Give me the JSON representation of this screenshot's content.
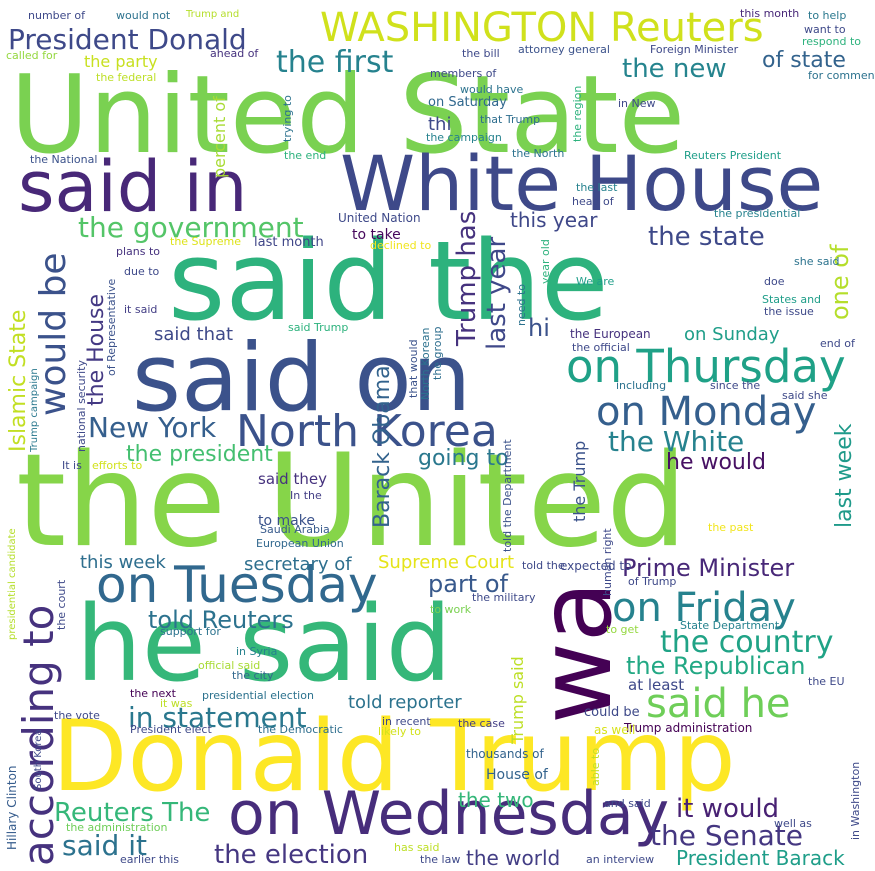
{
  "words": [
    {
      "text": "United State",
      "color": "#7ad151"
    },
    {
      "text": "the United",
      "color": "#86d549"
    },
    {
      "text": "said the",
      "color": "#2db27d"
    },
    {
      "text": "Donald Trump",
      "color": "#fde725"
    },
    {
      "text": "said on",
      "color": "#3b528b"
    },
    {
      "text": "wa",
      "color": "#440154"
    },
    {
      "text": "he said",
      "color": "#35b779"
    },
    {
      "text": "White House",
      "color": "#3e4989"
    },
    {
      "text": "said in",
      "color": "#482878"
    },
    {
      "text": "WASHINGTON Reuters",
      "color": "#d0e11c"
    },
    {
      "text": "on Wednesday",
      "color": "#472d7b"
    },
    {
      "text": "on Thursday",
      "color": "#1fa187"
    },
    {
      "text": "on Tuesday",
      "color": "#31688e"
    },
    {
      "text": "North Korea",
      "color": "#3b528b"
    },
    {
      "text": "on Monday",
      "color": "#355f8d"
    },
    {
      "text": "on Friday",
      "color": "#26828e"
    },
    {
      "text": "according to",
      "color": "#46327e"
    },
    {
      "text": "President Donald",
      "color": "#3e4989"
    },
    {
      "text": "said he",
      "color": "#6ece58"
    },
    {
      "text": "the government",
      "color": "#54c568"
    },
    {
      "text": "would be",
      "color": "#3b528b"
    },
    {
      "text": "in statement",
      "color": "#2a788e"
    },
    {
      "text": "the election",
      "color": "#453781"
    },
    {
      "text": "New York",
      "color": "#355f8d"
    },
    {
      "text": "the first",
      "color": "#26828e"
    },
    {
      "text": "the new",
      "color": "#25848e"
    },
    {
      "text": "the state",
      "color": "#3e4989"
    },
    {
      "text": "the country",
      "color": "#20a386"
    },
    {
      "text": "the White",
      "color": "#26828e"
    },
    {
      "text": "the Republican",
      "color": "#22a884"
    },
    {
      "text": "Prime Minister",
      "color": "#482878"
    },
    {
      "text": "part of",
      "color": "#38598c"
    },
    {
      "text": "told Reuters",
      "color": "#2c728e"
    },
    {
      "text": "it would",
      "color": "#482173"
    },
    {
      "text": "the Senate",
      "color": "#453781"
    },
    {
      "text": "said it",
      "color": "#2c728e"
    },
    {
      "text": "Reuters The",
      "color": "#35b779"
    },
    {
      "text": "the president",
      "color": "#44bf70"
    },
    {
      "text": "last year",
      "color": "#3f4889"
    },
    {
      "text": "Trump has",
      "color": "#46327e"
    },
    {
      "text": "Barack Obama",
      "color": "#33638d"
    },
    {
      "text": "this year",
      "color": "#3f4889"
    },
    {
      "text": "of state",
      "color": "#33638d"
    },
    {
      "text": "going to",
      "color": "#2a788e"
    },
    {
      "text": "he would",
      "color": "#471063"
    },
    {
      "text": "the world",
      "color": "#433e85"
    },
    {
      "text": "President Barack",
      "color": "#1f9e89"
    },
    {
      "text": "the House",
      "color": "#443983"
    },
    {
      "text": "Islamic State",
      "color": "#c2df23"
    },
    {
      "text": "one of",
      "color": "#b5de2b"
    },
    {
      "text": "last week",
      "color": "#1f9a8a"
    },
    {
      "text": "Supreme Court",
      "color": "#e5e419"
    },
    {
      "text": "secretary of",
      "color": "#2e6f8e"
    },
    {
      "text": "this week",
      "color": "#2e6e8e"
    },
    {
      "text": "told reporter",
      "color": "#2c738e"
    },
    {
      "text": "the two",
      "color": "#35b779"
    },
    {
      "text": "the party",
      "color": "#c8e020"
    },
    {
      "text": "Trump said",
      "color": "#bddf26"
    },
    {
      "text": "on Sunday",
      "color": "#1f9e89"
    },
    {
      "text": "on Saturday",
      "color": "#31688e"
    },
    {
      "text": "said that",
      "color": "#3e4989"
    },
    {
      "text": "hi",
      "color": "#3b528b"
    },
    {
      "text": "thi",
      "color": "#3e4989"
    },
    {
      "text": "House of",
      "color": "#33638d"
    },
    {
      "text": "the Trump",
      "color": "#3b528b"
    },
    {
      "text": "said they",
      "color": "#46327e"
    },
    {
      "text": "at least",
      "color": "#3e4989"
    },
    {
      "text": "percent of",
      "color": "#a8db34"
    },
    {
      "text": "last month",
      "color": "#404688"
    },
    {
      "text": "United Nation",
      "color": "#3e4989"
    },
    {
      "text": "to take",
      "color": "#46085c"
    },
    {
      "text": "to make",
      "color": "#3b528b"
    },
    {
      "text": "could be",
      "color": "#3e4989"
    },
    {
      "text": "expected to",
      "color": "#3e4989"
    },
    {
      "text": "the European",
      "color": "#46327e"
    },
    {
      "text": "Trump administration",
      "color": "#440154"
    },
    {
      "text": "thousands of",
      "color": "#33638d"
    },
    {
      "text": "the case",
      "color": "#433e85"
    },
    {
      "text": "as well",
      "color": "#d8e219"
    },
    {
      "text": "in recent",
      "color": "#3e4989"
    },
    {
      "text": "the Democratic",
      "color": "#2e6e8e"
    },
    {
      "text": "Saudi Arabia",
      "color": "#375a8c"
    },
    {
      "text": "European Union",
      "color": "#31688e"
    },
    {
      "text": "In the",
      "color": "#433e85"
    },
    {
      "text": "Hillary Clinton",
      "color": "#365c8d"
    },
    {
      "text": "South Korea",
      "color": "#3e4989"
    },
    {
      "text": "the vote",
      "color": "#3e4989"
    },
    {
      "text": "the next",
      "color": "#440154"
    },
    {
      "text": "President elect",
      "color": "#3e4989"
    },
    {
      "text": "presidential election",
      "color": "#2c728e"
    },
    {
      "text": "it was",
      "color": "#bddf26"
    },
    {
      "text": "the city",
      "color": "#31688e"
    },
    {
      "text": "official said",
      "color": "#a8db34"
    },
    {
      "text": "in Syria",
      "color": "#26828e"
    },
    {
      "text": "support for",
      "color": "#2c738e"
    },
    {
      "text": "the court",
      "color": "#3e4989"
    },
    {
      "text": "presidential candidate",
      "color": "#b5de2b"
    },
    {
      "text": "It is",
      "color": "#3e4989"
    },
    {
      "text": "efforts to",
      "color": "#d2e21b"
    },
    {
      "text": "national security",
      "color": "#3e4989"
    },
    {
      "text": "Trump campaign",
      "color": "#2a788e"
    },
    {
      "text": "of Representative",
      "color": "#3b528b"
    },
    {
      "text": "said Trump",
      "color": "#2db27d"
    },
    {
      "text": "it said",
      "color": "#433e85"
    },
    {
      "text": "due to",
      "color": "#3e4989"
    },
    {
      "text": "plans to",
      "color": "#46327e"
    },
    {
      "text": "the Supreme",
      "color": "#dde318"
    },
    {
      "text": "declined to",
      "color": "#f1e51d"
    },
    {
      "text": "the National",
      "color": "#3b528b"
    },
    {
      "text": "the end",
      "color": "#2db27d"
    },
    {
      "text": "trying to",
      "color": "#2c728e"
    },
    {
      "text": "the campaign",
      "color": "#26828e"
    },
    {
      "text": "that Trump",
      "color": "#2e6e8e"
    },
    {
      "text": "would have",
      "color": "#2c738e"
    },
    {
      "text": "members of",
      "color": "#3e4989"
    },
    {
      "text": "the federal",
      "color": "#bddf26"
    },
    {
      "text": "ahead of",
      "color": "#46327e"
    },
    {
      "text": "called for",
      "color": "#95d840"
    },
    {
      "text": "number of",
      "color": "#3e4989"
    },
    {
      "text": "would not",
      "color": "#2c728e"
    },
    {
      "text": "Trump and",
      "color": "#b5de2b"
    },
    {
      "text": "this month",
      "color": "#482878"
    },
    {
      "text": "to help",
      "color": "#2a788e"
    },
    {
      "text": "want to",
      "color": "#3e4989"
    },
    {
      "text": "respond to",
      "color": "#2db27d"
    },
    {
      "text": "Foreign Minister",
      "color": "#3e4989"
    },
    {
      "text": "attorney general",
      "color": "#3b528b"
    },
    {
      "text": "the bill",
      "color": "#3e4989"
    },
    {
      "text": "for comment",
      "color": "#2c728e"
    },
    {
      "text": "in New",
      "color": "#3e4989"
    },
    {
      "text": "the region",
      "color": "#2db27d"
    },
    {
      "text": "the North",
      "color": "#2c728e"
    },
    {
      "text": "Reuters President",
      "color": "#1f9e89"
    },
    {
      "text": "the last",
      "color": "#26828e"
    },
    {
      "text": "head of",
      "color": "#3e4989"
    },
    {
      "text": "the presidential",
      "color": "#26828e"
    },
    {
      "text": "We are",
      "color": "#1f9e89"
    },
    {
      "text": "doe",
      "color": "#3e4989"
    },
    {
      "text": "she said",
      "color": "#2c738e"
    },
    {
      "text": "States and",
      "color": "#1f9e89"
    },
    {
      "text": "the issue",
      "color": "#3e4989"
    },
    {
      "text": "end of",
      "color": "#3e4989"
    },
    {
      "text": "the official",
      "color": "#3e4989"
    },
    {
      "text": "including",
      "color": "#2c728e"
    },
    {
      "text": "since the",
      "color": "#3e4989"
    },
    {
      "text": "said she",
      "color": "#3e4989"
    },
    {
      "text": "need to",
      "color": "#2c728e"
    },
    {
      "text": "year old",
      "color": "#2db27d"
    },
    {
      "text": "that would",
      "color": "#3b528b"
    },
    {
      "text": "North Korean",
      "color": "#2c728e"
    },
    {
      "text": "the group",
      "color": "#2e6e8e"
    },
    {
      "text": "the past",
      "color": "#f1e51d"
    },
    {
      "text": "human right",
      "color": "#3e4989"
    },
    {
      "text": "of Trump",
      "color": "#3e4989"
    },
    {
      "text": "told the",
      "color": "#3e4989"
    },
    {
      "text": "the military",
      "color": "#3e4989"
    },
    {
      "text": "told the Department",
      "color": "#3b528b"
    },
    {
      "text": "to work",
      "color": "#7ad151"
    },
    {
      "text": "to get",
      "color": "#95d840"
    },
    {
      "text": "State Department",
      "color": "#26828e"
    },
    {
      "text": "the EU",
      "color": "#3e4989"
    },
    {
      "text": "likely to",
      "color": "#d2e21b"
    },
    {
      "text": "able to",
      "color": "#c2df23"
    },
    {
      "text": "and said",
      "color": "#3e4989"
    },
    {
      "text": "well as",
      "color": "#3e4989"
    },
    {
      "text": "in Washington",
      "color": "#3e4989"
    },
    {
      "text": "an interview",
      "color": "#3e4989"
    },
    {
      "text": "the law",
      "color": "#3e4989"
    },
    {
      "text": "has said",
      "color": "#bddf26"
    },
    {
      "text": "earlier this",
      "color": "#3e4989"
    },
    {
      "text": "the administration",
      "color": "#6ece58"
    }
  ]
}
